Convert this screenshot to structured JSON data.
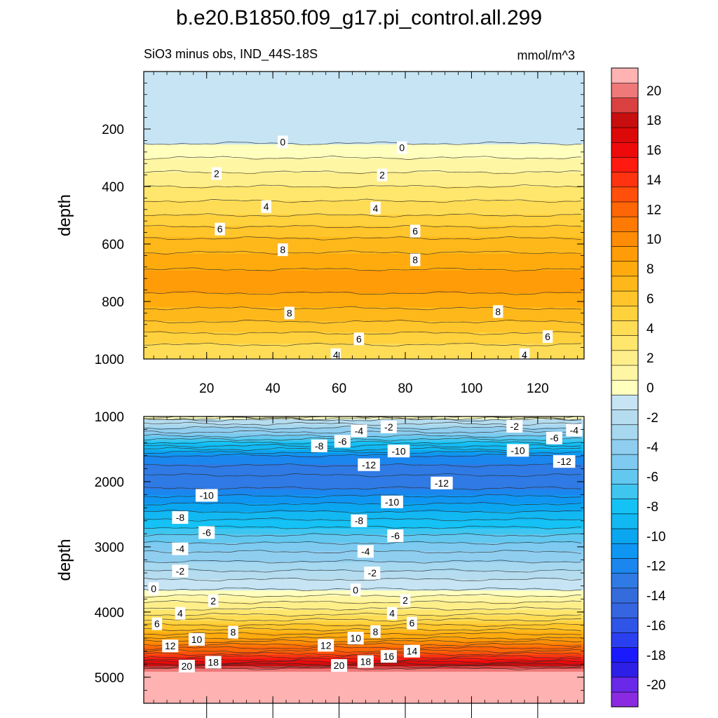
{
  "figure": {
    "title": "b.e20.B1850.f09_g17.pi_control.all.299",
    "subtitle_left": "SiO3 minus obs, IND_44S-18S",
    "subtitle_right": "mmol/m^3"
  },
  "chart_data": [
    {
      "type": "heatmap",
      "name": "upper-panel",
      "ylabel": "depth",
      "xlabel": "",
      "xlim": [
        1,
        134
      ],
      "ylim": [
        0,
        1000
      ],
      "y_inverted": true,
      "x_ticks": [
        "20",
        "40",
        "60",
        "80",
        "100",
        "120"
      ],
      "y_ticks": [
        "200",
        "400",
        "600",
        "800",
        "1000"
      ],
      "depth_profile": {
        "depth": [
          0,
          240,
          260,
          300,
          400,
          500,
          600,
          700,
          760,
          850,
          950,
          1000
        ],
        "value": [
          -1,
          -0.5,
          0.5,
          1,
          3,
          5,
          7.5,
          9.2,
          9.2,
          7.5,
          5,
          4
        ]
      },
      "contour_labels": [
        {
          "text": "0",
          "x": 43,
          "y": 245
        },
        {
          "text": "0",
          "x": 79,
          "y": 265
        },
        {
          "text": "2",
          "x": 23,
          "y": 355
        },
        {
          "text": "2",
          "x": 73,
          "y": 360
        },
        {
          "text": "4",
          "x": 38,
          "y": 470
        },
        {
          "text": "4",
          "x": 71,
          "y": 475
        },
        {
          "text": "6",
          "x": 24,
          "y": 548
        },
        {
          "text": "6",
          "x": 83,
          "y": 555
        },
        {
          "text": "8",
          "x": 43,
          "y": 620
        },
        {
          "text": "8",
          "x": 83,
          "y": 655
        },
        {
          "text": "8",
          "x": 45,
          "y": 840
        },
        {
          "text": "8",
          "x": 108,
          "y": 835
        },
        {
          "text": "6",
          "x": 66,
          "y": 930
        },
        {
          "text": "6",
          "x": 123,
          "y": 922
        },
        {
          "text": "4",
          "x": 59,
          "y": 985
        },
        {
          "text": "4",
          "x": 116,
          "y": 985
        }
      ]
    },
    {
      "type": "heatmap",
      "name": "lower-panel",
      "ylabel": "depth",
      "xlabel": "",
      "xlim": [
        1,
        134
      ],
      "ylim": [
        1000,
        5400
      ],
      "y_inverted": true,
      "y_ticks": [
        "1000",
        "2000",
        "3000",
        "4000",
        "5000"
      ],
      "depth_profile": {
        "depth": [
          1000,
          1050,
          1300,
          1600,
          1900,
          2100,
          2400,
          2700,
          3000,
          3300,
          3500,
          3650,
          3800,
          4000,
          4200,
          4400,
          4600,
          4750,
          4830,
          4880,
          4950,
          5400
        ],
        "value": [
          1.5,
          -1,
          -5,
          -11,
          -13,
          -12,
          -9.5,
          -7,
          -4.5,
          -2.5,
          -1,
          0,
          1.5,
          3.5,
          6,
          9,
          13,
          16.5,
          19,
          20.5,
          22,
          22
        ]
      },
      "contour_labels": [
        {
          "text": "-2",
          "x": 75,
          "y": 1160
        },
        {
          "text": "-4",
          "x": 66,
          "y": 1220
        },
        {
          "text": "-6",
          "x": 61,
          "y": 1380
        },
        {
          "text": "-8",
          "x": 54,
          "y": 1450
        },
        {
          "text": "-10",
          "x": 78,
          "y": 1530
        },
        {
          "text": "-12",
          "x": 69,
          "y": 1740
        },
        {
          "text": "-2",
          "x": 113,
          "y": 1150
        },
        {
          "text": "-6",
          "x": 125,
          "y": 1330
        },
        {
          "text": "-4",
          "x": 131,
          "y": 1210
        },
        {
          "text": "-10",
          "x": 114,
          "y": 1520
        },
        {
          "text": "-12",
          "x": 128,
          "y": 1690
        },
        {
          "text": "-12",
          "x": 91,
          "y": 2020
        },
        {
          "text": "-10",
          "x": 20,
          "y": 2210
        },
        {
          "text": "-10",
          "x": 76,
          "y": 2310
        },
        {
          "text": "-8",
          "x": 12,
          "y": 2550
        },
        {
          "text": "-8",
          "x": 66,
          "y": 2600
        },
        {
          "text": "-6",
          "x": 20,
          "y": 2780
        },
        {
          "text": "-6",
          "x": 77,
          "y": 2830
        },
        {
          "text": "-4",
          "x": 12,
          "y": 3030
        },
        {
          "text": "-4",
          "x": 68,
          "y": 3070
        },
        {
          "text": "-2",
          "x": 12,
          "y": 3370
        },
        {
          "text": "-2",
          "x": 70,
          "y": 3400
        },
        {
          "text": "0",
          "x": 4,
          "y": 3640
        },
        {
          "text": "0",
          "x": 65,
          "y": 3660
        },
        {
          "text": "2",
          "x": 22,
          "y": 3830
        },
        {
          "text": "2",
          "x": 80,
          "y": 3820
        },
        {
          "text": "4",
          "x": 12,
          "y": 4020
        },
        {
          "text": "4",
          "x": 76,
          "y": 4020
        },
        {
          "text": "6",
          "x": 5,
          "y": 4180
        },
        {
          "text": "6",
          "x": 82,
          "y": 4170
        },
        {
          "text": "8",
          "x": 28,
          "y": 4310
        },
        {
          "text": "8",
          "x": 71,
          "y": 4300
        },
        {
          "text": "10",
          "x": 17,
          "y": 4420
        },
        {
          "text": "10",
          "x": 65,
          "y": 4400
        },
        {
          "text": "12",
          "x": 9,
          "y": 4520
        },
        {
          "text": "12",
          "x": 56,
          "y": 4510
        },
        {
          "text": "14",
          "x": 82,
          "y": 4600
        },
        {
          "text": "16",
          "x": 75,
          "y": 4680
        },
        {
          "text": "18",
          "x": 22,
          "y": 4770
        },
        {
          "text": "18",
          "x": 68,
          "y": 4760
        },
        {
          "text": "20",
          "x": 14,
          "y": 4830
        },
        {
          "text": "20",
          "x": 60,
          "y": 4820
        }
      ]
    }
  ],
  "colorbar": {
    "levels": [
      -21,
      -20,
      -19,
      -18,
      -17,
      -16,
      -15,
      -14,
      -13,
      -12,
      -11,
      -10,
      -9,
      -8,
      -7,
      -6,
      -5,
      -4,
      -3,
      -2,
      -1,
      0,
      1,
      2,
      3,
      4,
      5,
      6,
      7,
      8,
      9,
      10,
      11,
      12,
      13,
      14,
      15,
      16,
      17,
      18,
      19,
      20,
      21
    ],
    "tick_labels": [
      "-20",
      "-18",
      "-16",
      "-14",
      "-12",
      "-10",
      "-8",
      "-6",
      "-4",
      "-2",
      "0",
      "2",
      "4",
      "6",
      "8",
      "10",
      "12",
      "14",
      "16",
      "18",
      "20"
    ],
    "colors": [
      "#8a2be2",
      "#6a28e8",
      "#2d1fe6",
      "#1a1aff",
      "#2a40f0",
      "#2e55e8",
      "#3565e0",
      "#356cdc",
      "#2f7ae4",
      "#1a86ee",
      "#0e96f2",
      "#0aa6f0",
      "#12b8f2",
      "#14c2f5",
      "#3ec6f0",
      "#62c8f0",
      "#7ecaf0",
      "#90cef0",
      "#a6d8ef",
      "#b5dcef",
      "#c6e4f3",
      "#ffffbe",
      "#fff6a4",
      "#ffef8a",
      "#ffe66c",
      "#ffdc55",
      "#ffd13d",
      "#ffc52a",
      "#ffb81a",
      "#ffab0d",
      "#ff9c08",
      "#ff8c05",
      "#ff7a05",
      "#ff6605",
      "#ff4f0a",
      "#ff330f",
      "#ff1a0f",
      "#ee0a0a",
      "#dd0808",
      "#c80e0e",
      "#da4040",
      "#ef7878",
      "#ffb2b2"
    ]
  }
}
